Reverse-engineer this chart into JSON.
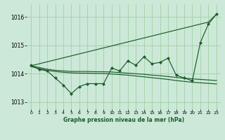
{
  "xlabel": "Graphe pression niveau de la mer (hPa)",
  "xlim": [
    -0.5,
    23.5
  ],
  "ylim": [
    1012.75,
    1016.45
  ],
  "yticks": [
    1013,
    1014,
    1015,
    1016
  ],
  "xticks": [
    0,
    1,
    2,
    3,
    4,
    5,
    6,
    7,
    8,
    9,
    10,
    11,
    12,
    13,
    14,
    15,
    16,
    17,
    18,
    19,
    20,
    21,
    22,
    23
  ],
  "bg_color": "#cce8d8",
  "line_color": "#1a5c2a",
  "grid_color": "#99cc99",
  "line_zigzag_y": [
    1014.3,
    1014.15,
    1014.1,
    1013.85,
    1013.6,
    1013.3,
    1013.55,
    1013.65,
    1013.65,
    1013.65,
    1014.2,
    1014.1,
    1014.45,
    1014.3,
    1014.6,
    1014.35,
    1014.4,
    1014.55,
    1013.95,
    1013.85,
    1013.75,
    1015.1,
    1015.75,
    1016.1
  ],
  "line_straight_y": [
    1014.28,
    1014.35,
    1014.42,
    1014.49,
    1014.56,
    1014.63,
    1014.7,
    1014.77,
    1014.84,
    1014.91,
    1014.98,
    1015.05,
    1015.12,
    1015.19,
    1015.26,
    1015.33,
    1015.4,
    1015.47,
    1015.54,
    1015.61,
    1015.68,
    1015.75,
    1015.82,
    1016.1
  ],
  "line_smooth1_y": [
    1014.28,
    1014.22,
    1014.16,
    1014.12,
    1014.1,
    1014.08,
    1014.08,
    1014.08,
    1014.07,
    1014.07,
    1014.06,
    1014.04,
    1014.02,
    1014.0,
    1013.98,
    1013.95,
    1013.93,
    1013.9,
    1013.87,
    1013.84,
    1013.82,
    1013.8,
    1013.78,
    1013.76
  ],
  "line_smooth2_y": [
    1014.25,
    1014.18,
    1014.12,
    1014.08,
    1014.05,
    1014.03,
    1014.02,
    1014.02,
    1014.01,
    1014.01,
    1013.99,
    1013.97,
    1013.95,
    1013.92,
    1013.89,
    1013.86,
    1013.83,
    1013.8,
    1013.76,
    1013.73,
    1013.7,
    1013.68,
    1013.66,
    1013.64
  ]
}
